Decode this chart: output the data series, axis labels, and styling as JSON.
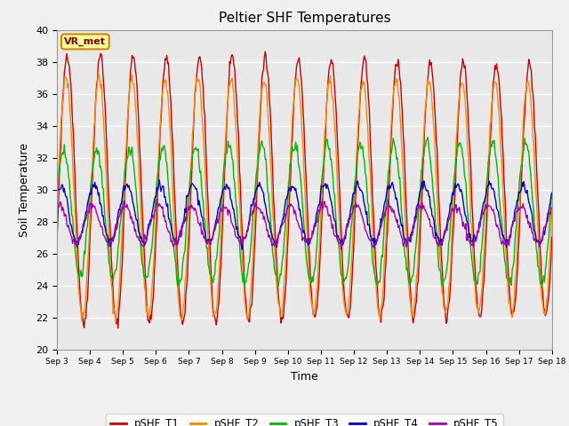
{
  "title": "Peltier SHF Temperatures",
  "xlabel": "Time",
  "ylabel": "Soil Temperature",
  "ylim": [
    20,
    40
  ],
  "yticks": [
    20,
    22,
    24,
    26,
    28,
    30,
    32,
    34,
    36,
    38,
    40
  ],
  "xtick_labels": [
    "Sep 3",
    "Sep 4",
    "Sep 5",
    "Sep 6",
    "Sep 7",
    "Sep 8",
    "Sep 9",
    "Sep 10",
    "Sep 11",
    "Sep 12",
    "Sep 13",
    "Sep 14",
    "Sep 15",
    "Sep 16",
    "Sep 17",
    "Sep 18"
  ],
  "colors": {
    "pSHF_T1": "#cc0000",
    "pSHF_T2": "#ff8800",
    "pSHF_T3": "#00bb00",
    "pSHF_T4": "#0000cc",
    "pSHF_T5": "#aa00aa"
  },
  "annotation": "VR_met",
  "annotation_bg": "#ffff99",
  "annotation_border": "#cc8800",
  "bg_color": "#e8e8e8",
  "grid_color": "#ffffff",
  "n_points": 600,
  "days": 15,
  "legend_labels": [
    "pSHF_T1",
    "pSHF_T2",
    "pSHF_T3",
    "pSHF_T4",
    "pSHF_T5"
  ]
}
